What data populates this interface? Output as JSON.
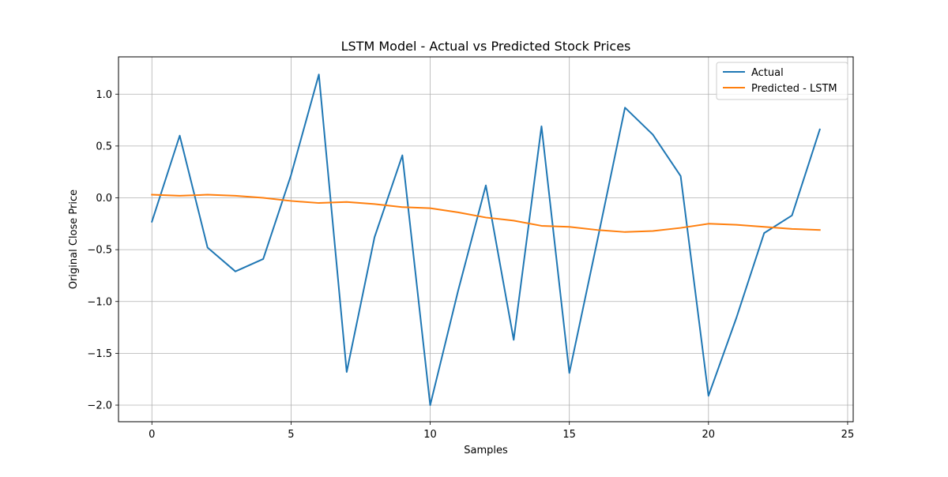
{
  "chart_data": {
    "type": "line",
    "title": "LSTM Model - Actual vs Predicted Stock Prices",
    "xlabel": "Samples",
    "ylabel": "Original Close Price",
    "xlim": [
      -1.2,
      25.2
    ],
    "ylim": [
      -2.16,
      1.36
    ],
    "x_ticks": [
      0,
      5,
      10,
      15,
      20,
      25
    ],
    "x_tick_labels": [
      "0",
      "5",
      "10",
      "15",
      "20",
      "25"
    ],
    "y_ticks": [
      1.0,
      0.5,
      0.0,
      -0.5,
      -1.0,
      -1.5,
      -2.0
    ],
    "y_tick_labels": [
      "1.0",
      "0.5",
      "0.0",
      "−0.5",
      "−1.0",
      "−1.5",
      "−2.0"
    ],
    "grid": true,
    "legend_position": "top-right",
    "x": [
      0,
      1,
      2,
      3,
      4,
      5,
      6,
      7,
      8,
      9,
      10,
      11,
      12,
      13,
      14,
      15,
      16,
      17,
      18,
      19,
      20,
      21,
      22,
      23,
      24
    ],
    "series": [
      {
        "name": "Actual",
        "color": "#1f77b4",
        "values": [
          -0.23,
          0.6,
          -0.48,
          -0.71,
          -0.59,
          0.22,
          1.19,
          -1.68,
          -0.38,
          0.41,
          -2.0,
          -0.9,
          0.12,
          -1.37,
          0.69,
          -1.69,
          -0.42,
          0.87,
          0.61,
          0.21,
          -1.91,
          -1.16,
          -0.34,
          -0.17,
          0.66
        ]
      },
      {
        "name": "Predicted - LSTM",
        "color": "#ff7f0e",
        "values": [
          0.03,
          0.02,
          0.03,
          0.02,
          0.0,
          -0.03,
          -0.05,
          -0.04,
          -0.06,
          -0.09,
          -0.1,
          -0.14,
          -0.19,
          -0.22,
          -0.27,
          -0.28,
          -0.31,
          -0.33,
          -0.32,
          -0.29,
          -0.25,
          -0.26,
          -0.28,
          -0.3,
          -0.31
        ]
      }
    ]
  }
}
